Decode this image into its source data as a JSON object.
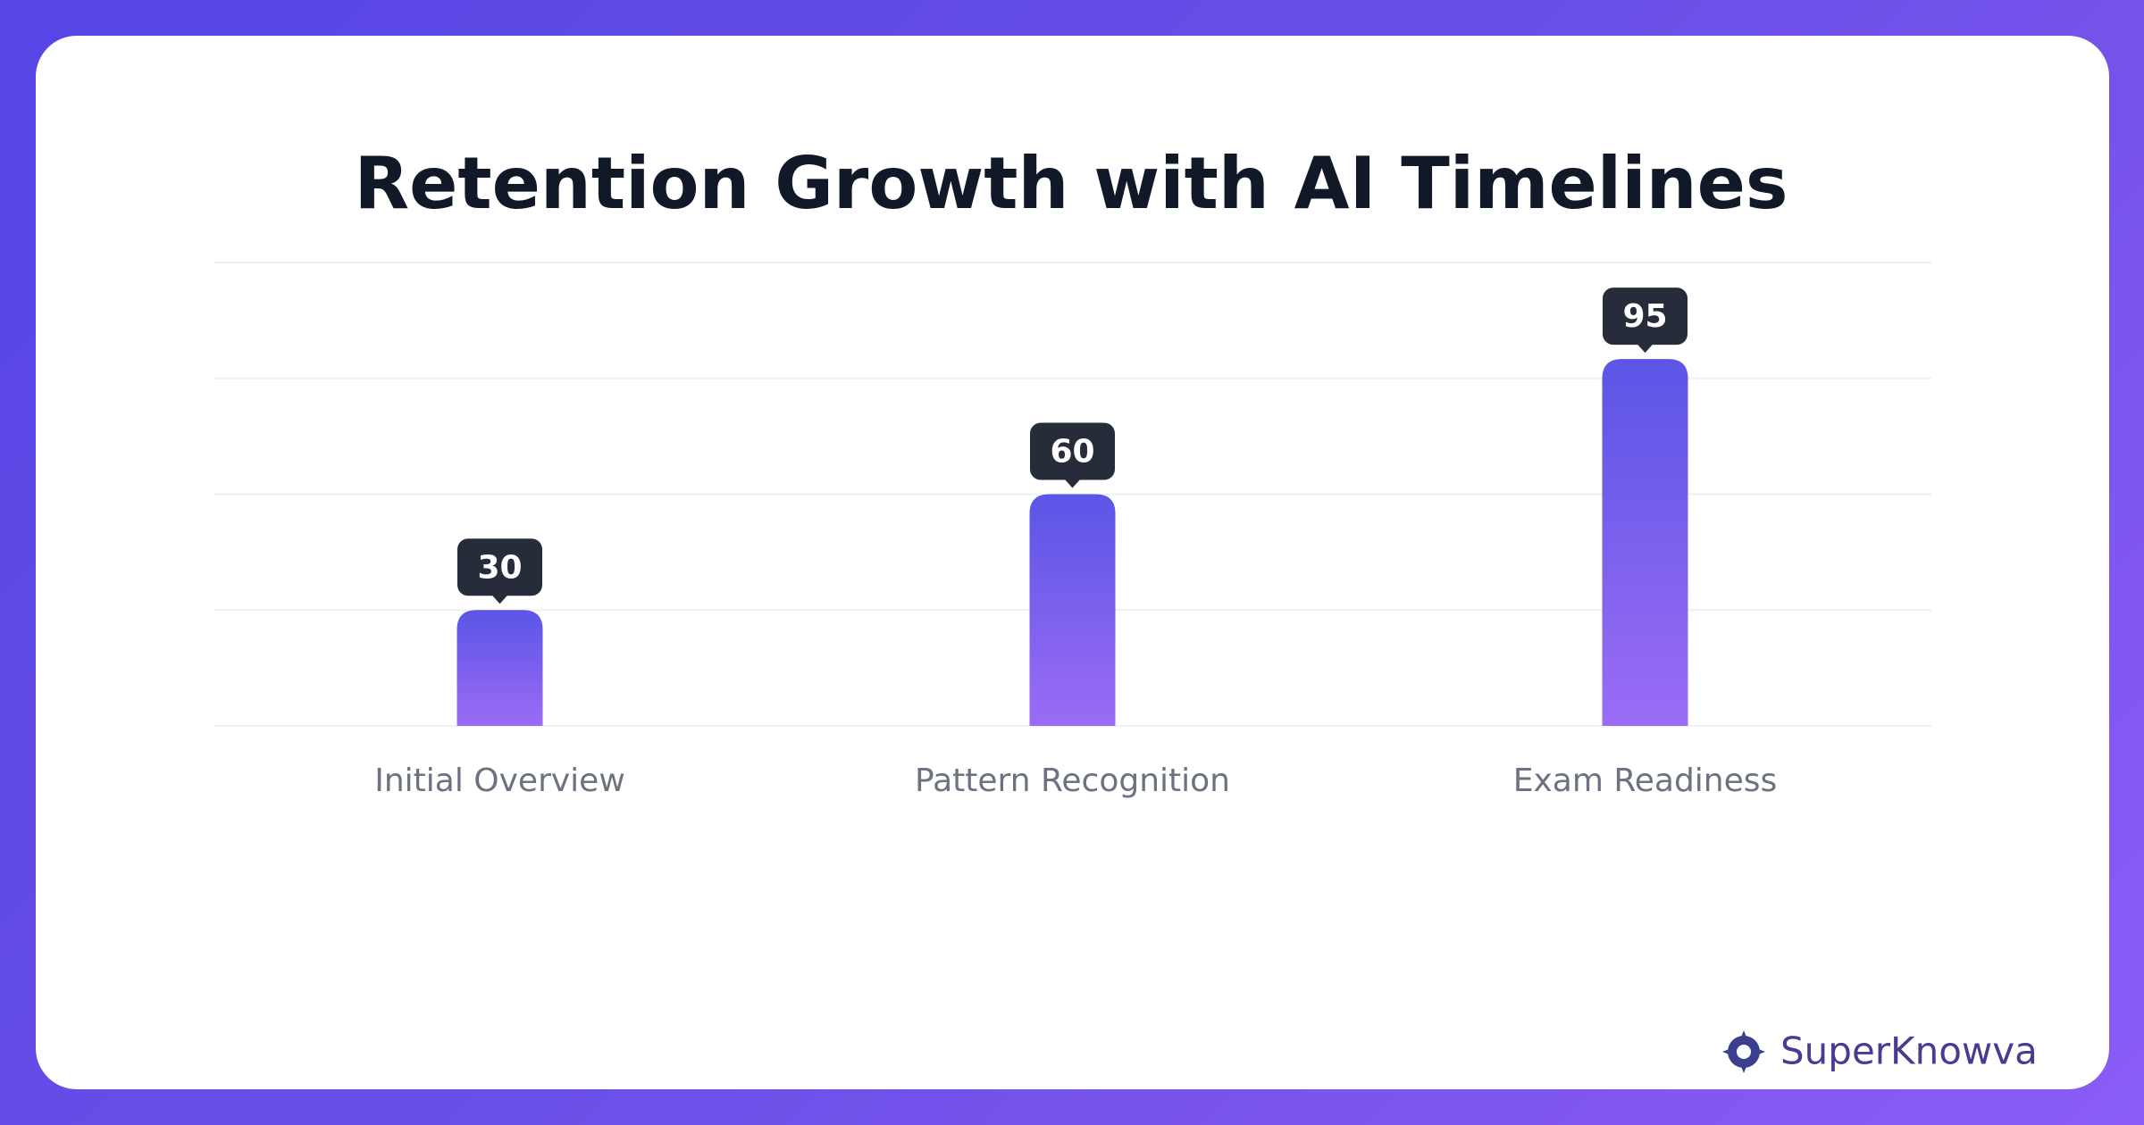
{
  "chart_data": {
    "type": "bar",
    "title": "Retention Growth with AI Timelines",
    "categories": [
      "Initial Overview",
      "Pattern Recognition",
      "Exam Readiness"
    ],
    "values": [
      30,
      60,
      95
    ],
    "color": "#6b5cf0",
    "ylim": [
      0,
      120
    ],
    "yticks": [
      0,
      30,
      60,
      90,
      120
    ],
    "grid": true
  },
  "brand": "SuperKnowva"
}
